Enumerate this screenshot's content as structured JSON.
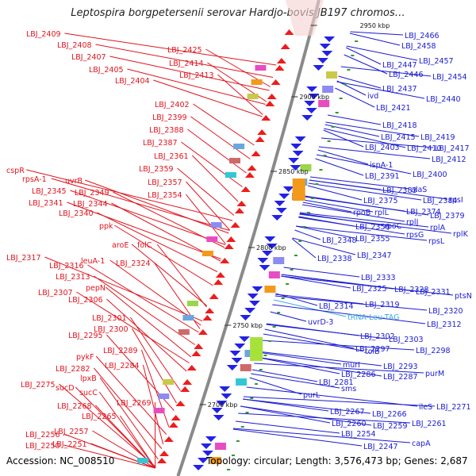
{
  "title": "Leptospira borgpetersenii serovar Hardjo-bovis JB197 chromos…",
  "accession": "Accession: NC_008510",
  "topology": "Topology: circular; Length: 3,576,473 bp; Genes: 2,687",
  "colors": {
    "left_label": "#e0141e",
    "right_label": "#1a1ad2",
    "trna_label": "#3aa9e0",
    "backbone": "#8a8a8a",
    "tick": "#2e9a2e"
  },
  "ticks": [
    "2950 kbp",
    "2900 kbp",
    "2850 kbp",
    "2800 kbp",
    "2750 kbp",
    "2700 kbp"
  ],
  "left_labels": [
    "LBJ_2409",
    "LBJ_2408",
    "LBJ_2407",
    "LBJ_2405",
    "LBJ_2404",
    "LBJ_2425",
    "LBJ_2414",
    "LBJ_2413",
    "LBJ_2402",
    "LBJ_2399",
    "LBJ_2388",
    "LBJ_2387",
    "LBJ_2361",
    "LBJ_2359",
    "LBJ_2357",
    "LBJ_2354",
    "cspR",
    "rpsA-1",
    "uvrB",
    "LBJ_2345",
    "LBJ_2349",
    "LBJ_2341",
    "LBJ_2344",
    "LBJ_2340",
    "ppk",
    "aroE",
    "folC",
    "LBJ_2317",
    "leuA-1",
    "LBJ_2324",
    "LBJ_2316",
    "LBJ_2313",
    "pepN",
    "LBJ_2307",
    "LBJ_2306",
    "LBJ_2301",
    "LBJ_2300",
    "LBJ_2295",
    "LBJ_2289",
    "pykF",
    "LBJ_2284",
    "LBJ_2282",
    "lpxB",
    "LBJ_2275",
    "sucD",
    "sucC",
    "LBJ_2269",
    "LBJ_2268",
    "LBJ_2265",
    "LBJ_2257",
    "LBJ_2256",
    "LBJ_2251",
    "LBJ_2250"
  ],
  "right_labels": [
    "LBJ_2466",
    "LBJ_2458",
    "LBJ_2457",
    "LBJ_2447",
    "LBJ_2446",
    "LBJ_2454",
    "LBJ_2437",
    "ivd",
    "LBJ_2440",
    "LBJ_2421",
    "LBJ_2418",
    "LBJ_2415",
    "LBJ_2419",
    "LBJ_2403",
    "LBJ_2410",
    "LBJ_2417",
    "LBJ_2412",
    "ispA-1",
    "LBJ_2391",
    "LBJ_2400",
    "LBJ_2383",
    "alaS",
    "LBJ_2375",
    "LBJ_2384",
    "rpsI",
    "rpoB",
    "rplL",
    "LBJ_2374",
    "rplJ",
    "LBJ_2379",
    "LBJ_2356",
    "rpoC",
    "rplA",
    "rpsG",
    "rplK",
    "LBJ_2348",
    "LBJ_2355",
    "rpsL",
    "LBJ_2347",
    "LBJ_2338",
    "LBJ_2333",
    "LBJ_2325",
    "LBJ_2328",
    "LBJ_2331",
    "ptsN",
    "LBJ_2319",
    "LBJ_2314",
    "LBJ_2320",
    "tRNA-Leu-TAG",
    "LBJ_2312",
    "uvrD-3",
    "LBJ_2302",
    "LBJ_2303",
    "tolB",
    "LBJ_2297",
    "LBJ_2298",
    "murI",
    "LBJ_2293",
    "LBJ_2286",
    "LBJ_2287",
    "purM",
    "LBJ_2281",
    "sms",
    "purL",
    "ileS",
    "LBJ_2271",
    "LBJ_2267",
    "LBJ_2266",
    "LBJ_2260",
    "LBJ_2259",
    "LBJ_2261",
    "LBJ_2254",
    "capA",
    "LBJ_2247"
  ]
}
